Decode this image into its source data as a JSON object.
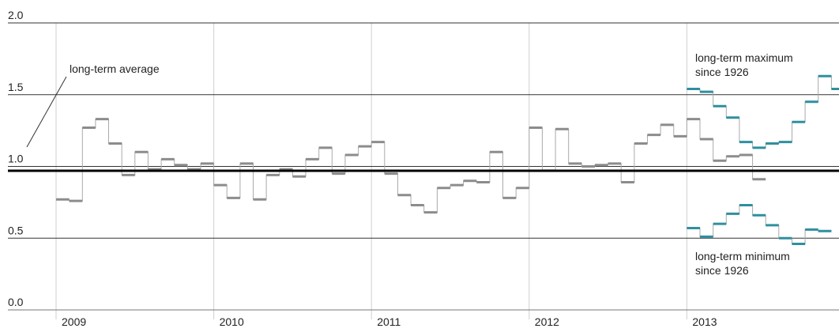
{
  "chart_data": {
    "type": "line",
    "step": true,
    "xlabel": "",
    "ylabel": "",
    "xlim": [
      2009,
      2014
    ],
    "ylim": [
      0.0,
      2.0
    ],
    "y_ticks": [
      "0.0",
      "0.5",
      "1.0",
      "1.5",
      "2.0"
    ],
    "x_ticks": [
      "2009",
      "2010",
      "2011",
      "2012",
      "2013"
    ],
    "grid": true,
    "reference_line": {
      "y": 0.97,
      "label": "long-term average",
      "color": "#000000"
    },
    "series": [
      {
        "color": "#8c8c8c",
        "values": [
          0.77,
          0.76,
          1.27,
          1.33,
          1.16,
          0.94,
          1.1,
          0.98,
          1.05,
          1.01,
          0.98,
          1.02,
          0.87,
          0.78,
          1.02,
          0.77,
          0.94,
          0.98,
          0.93,
          1.05,
          1.13,
          0.95,
          1.08,
          1.14,
          1.17,
          0.95,
          0.8,
          0.73,
          0.68,
          0.85,
          0.87,
          0.9,
          0.89,
          1.1,
          0.78,
          0.85,
          1.27,
          0.97,
          1.26,
          1.02,
          1.0,
          1.01,
          1.02,
          0.89,
          1.16,
          1.22,
          1.29,
          1.21,
          1.33,
          1.19,
          1.04,
          1.07,
          1.08,
          0.91
        ]
      },
      {
        "name": "long-term maximum since 1926",
        "color": "#2f8f9f",
        "values": [
          1.54,
          1.52,
          1.42,
          1.34,
          1.17,
          1.13,
          1.16,
          1.17,
          1.31,
          1.45,
          1.63,
          1.54
        ]
      },
      {
        "name": "long-term minimum since 1926",
        "color": "#2f8f9f",
        "values": [
          0.57,
          0.51,
          0.6,
          0.67,
          0.73,
          0.66,
          0.59,
          0.5,
          0.46,
          0.56,
          0.55
        ]
      }
    ],
    "annotations": [
      {
        "lines": [
          "long-term maximum",
          "since 1926"
        ]
      },
      {
        "lines": [
          "long-term minimum",
          "since 1926"
        ]
      }
    ]
  }
}
